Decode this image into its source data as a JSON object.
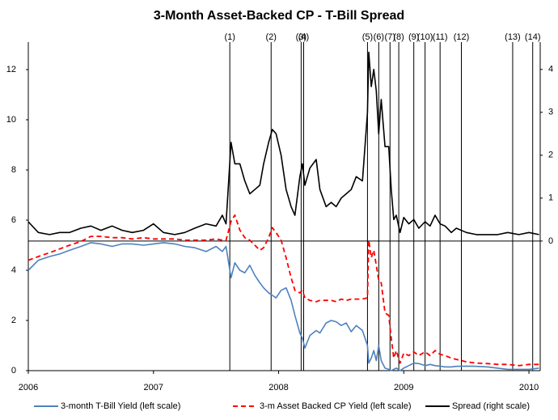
{
  "chart_data": {
    "type": "line",
    "title": "3-Month Asset-Backed CP - T-Bill Spread",
    "x": [
      2006.0,
      2006.08,
      2006.17,
      2006.25,
      2006.33,
      2006.42,
      2006.5,
      2006.58,
      2006.67,
      2006.75,
      2006.83,
      2006.92,
      2007.0,
      2007.08,
      2007.17,
      2007.25,
      2007.33,
      2007.42,
      2007.5,
      2007.55,
      2007.58,
      2007.62,
      2007.65,
      2007.69,
      2007.73,
      2007.77,
      2007.81,
      2007.85,
      2007.88,
      2007.92,
      2007.95,
      2007.98,
      2008.02,
      2008.06,
      2008.1,
      2008.13,
      2008.17,
      2008.19,
      2008.21,
      2008.25,
      2008.3,
      2008.33,
      2008.38,
      2008.42,
      2008.46,
      2008.5,
      2008.54,
      2008.58,
      2008.62,
      2008.67,
      2008.71,
      2008.72,
      2008.74,
      2008.76,
      2008.78,
      2008.8,
      2008.82,
      2008.85,
      2008.88,
      2008.9,
      2008.92,
      2008.94,
      2008.97,
      2009.0,
      2009.04,
      2009.08,
      2009.12,
      2009.17,
      2009.21,
      2009.25,
      2009.29,
      2009.33,
      2009.38,
      2009.42,
      2009.5,
      2009.58,
      2009.67,
      2009.75,
      2009.83,
      2009.92,
      2010.0,
      2010.08
    ],
    "series": [
      {
        "name": "3-month T-Bill Yield (left scale)",
        "color": "#4f81bd",
        "dash": false,
        "axis": "y",
        "values": [
          4.0,
          4.4,
          4.55,
          4.65,
          4.8,
          4.95,
          5.1,
          5.05,
          4.95,
          5.05,
          5.05,
          5.0,
          5.05,
          5.1,
          5.05,
          4.95,
          4.9,
          4.75,
          4.95,
          4.75,
          4.95,
          3.7,
          4.3,
          4.0,
          3.9,
          4.2,
          3.8,
          3.5,
          3.3,
          3.1,
          3.0,
          2.9,
          3.2,
          3.3,
          2.8,
          2.2,
          1.5,
          1.3,
          0.9,
          1.4,
          1.6,
          1.5,
          1.9,
          2.0,
          1.95,
          1.8,
          1.9,
          1.55,
          1.8,
          1.6,
          1.0,
          0.3,
          0.5,
          0.8,
          0.4,
          1.0,
          0.4,
          0.1,
          0.05,
          0.0,
          0.05,
          0.1,
          0.0,
          0.1,
          0.2,
          0.3,
          0.28,
          0.2,
          0.25,
          0.2,
          0.18,
          0.15,
          0.15,
          0.17,
          0.18,
          0.17,
          0.15,
          0.1,
          0.05,
          0.05,
          0.05,
          0.1
        ]
      },
      {
        "name": "3-m Asset Backed CP Yield (left scale)",
        "color": "#ff0000",
        "dash": true,
        "axis": "y",
        "values": [
          4.4,
          4.55,
          4.7,
          4.85,
          5.0,
          5.15,
          5.35,
          5.35,
          5.3,
          5.3,
          5.25,
          5.3,
          5.25,
          5.25,
          5.25,
          5.2,
          5.2,
          5.2,
          5.25,
          5.2,
          5.2,
          5.95,
          6.2,
          5.6,
          5.3,
          5.2,
          5.0,
          4.8,
          4.9,
          5.3,
          5.7,
          5.5,
          5.2,
          4.5,
          3.7,
          3.2,
          3.1,
          3.2,
          2.9,
          2.8,
          2.75,
          2.8,
          2.8,
          2.8,
          2.75,
          2.85,
          2.8,
          2.85,
          2.85,
          2.85,
          2.9,
          5.2,
          4.5,
          4.8,
          4.2,
          3.6,
          3.5,
          2.3,
          2.2,
          1.3,
          0.5,
          0.8,
          0.3,
          0.7,
          0.6,
          0.75,
          0.6,
          0.75,
          0.6,
          0.8,
          0.65,
          0.6,
          0.5,
          0.45,
          0.35,
          0.3,
          0.28,
          0.25,
          0.25,
          0.2,
          0.25,
          0.25
        ]
      },
      {
        "name": "Spread (right scale)",
        "color": "#000000",
        "dash": false,
        "axis": "y2",
        "values": [
          0.45,
          0.2,
          0.15,
          0.2,
          0.2,
          0.3,
          0.35,
          0.25,
          0.35,
          0.25,
          0.2,
          0.25,
          0.4,
          0.2,
          0.15,
          0.2,
          0.3,
          0.4,
          0.35,
          0.6,
          0.4,
          2.3,
          1.8,
          1.8,
          1.4,
          1.1,
          1.2,
          1.3,
          1.8,
          2.3,
          2.6,
          2.5,
          2.0,
          1.2,
          0.8,
          0.6,
          1.5,
          1.8,
          1.3,
          1.7,
          1.9,
          1.2,
          0.8,
          0.9,
          0.8,
          1.0,
          1.1,
          1.2,
          1.5,
          1.4,
          3.0,
          4.4,
          3.6,
          4.0,
          3.5,
          2.5,
          3.3,
          2.2,
          2.2,
          1.2,
          0.5,
          0.6,
          0.2,
          0.55,
          0.4,
          0.5,
          0.3,
          0.45,
          0.35,
          0.6,
          0.4,
          0.35,
          0.2,
          0.3,
          0.2,
          0.15,
          0.15,
          0.15,
          0.2,
          0.15,
          0.2,
          0.15
        ]
      }
    ],
    "events": [
      {
        "label": "(1)",
        "x": 2007.61
      },
      {
        "label": "(2)",
        "x": 2007.94
      },
      {
        "label": "(3)",
        "x": 2008.18
      },
      {
        "label": "(4)",
        "x": 2008.2
      },
      {
        "label": "(5)",
        "x": 2008.71
      },
      {
        "label": "(6)",
        "x": 2008.8
      },
      {
        "label": "(7)",
        "x": 2008.89
      },
      {
        "label": "(8)",
        "x": 2008.96
      },
      {
        "label": "(9)",
        "x": 2009.08
      },
      {
        "label": "(10)",
        "x": 2009.17
      },
      {
        "label": "(11)",
        "x": 2009.29
      },
      {
        "label": "(12)",
        "x": 2009.46
      },
      {
        "label": "(13)",
        "x": 2009.87
      },
      {
        "label": "(14)",
        "x": 2010.03
      }
    ],
    "xlim": [
      2006,
      2010.09
    ],
    "xticks": [
      2006,
      2007,
      2008,
      2009,
      2010
    ],
    "ylim": [
      0,
      13
    ],
    "yticks": [
      0,
      2,
      4,
      6,
      8,
      10,
      12
    ],
    "y2lim": [
      -3.02,
      4.58
    ],
    "y2ticks": [
      0,
      1,
      2,
      3,
      4
    ],
    "legend": "bottom"
  }
}
